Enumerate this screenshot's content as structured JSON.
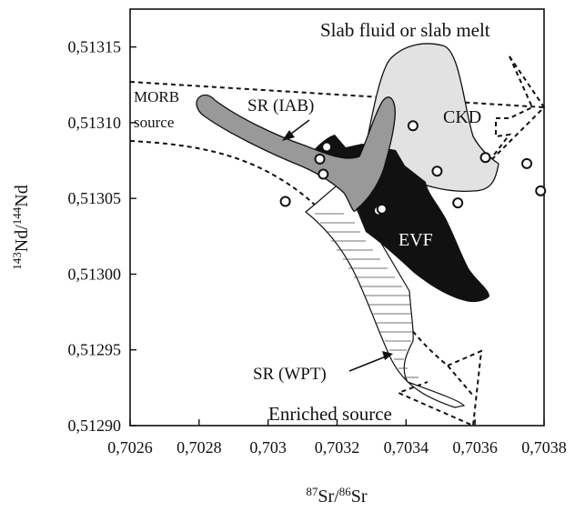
{
  "chart_data": {
    "type": "scatter",
    "title": "",
    "xlabel_sup": "87",
    "xlabel_mid": "Sr/",
    "xlabel_sup2": "86",
    "xlabel_end": "Sr",
    "ylabel_sup": "143",
    "ylabel_mid": "Nd/",
    "ylabel_sup2": "144",
    "ylabel_end": "Nd",
    "xlim": [
      0.7026,
      0.7038
    ],
    "ylim": [
      0.5129,
      0.513175
    ],
    "x_ticks": [
      0.7026,
      0.7028,
      0.703,
      0.7032,
      0.7034,
      0.7036,
      0.7038
    ],
    "x_tick_labels": [
      "0,7026",
      "0,7028",
      "0,703",
      "0,7032",
      "0,7034",
      "0,7036",
      "0,7038"
    ],
    "y_ticks": [
      0.5129,
      0.51295,
      0.513,
      0.51305,
      0.5131,
      0.51315
    ],
    "y_tick_labels": [
      "0,51290",
      "0,51295",
      "0,51300",
      "0,51305",
      "0,51310",
      "0,51315"
    ],
    "points": [
      {
        "x": 0.70305,
        "y": 0.513048
      },
      {
        "x": 0.70315,
        "y": 0.513076
      },
      {
        "x": 0.70317,
        "y": 0.513084
      },
      {
        "x": 0.70316,
        "y": 0.513066
      },
      {
        "x": 0.70332,
        "y": 0.513042
      },
      {
        "x": 0.70333,
        "y": 0.513043
      },
      {
        "x": 0.70342,
        "y": 0.513098
      },
      {
        "x": 0.70349,
        "y": 0.513068
      },
      {
        "x": 0.70355,
        "y": 0.513047
      },
      {
        "x": 0.70363,
        "y": 0.513077
      },
      {
        "x": 0.70375,
        "y": 0.513073
      },
      {
        "x": 0.70379,
        "y": 0.513055
      }
    ],
    "annotations": [
      {
        "text": "Slab fluid or slab melt"
      },
      {
        "text": "MORB"
      },
      {
        "text": "source"
      },
      {
        "text": "SR (IAB)"
      },
      {
        "text": "CKD"
      },
      {
        "text": "EVF"
      },
      {
        "text": "SR (WPT)"
      },
      {
        "text": "Enriched source"
      }
    ],
    "colors": {
      "evf": "#111111",
      "sr_iab": "#999999",
      "ckd": "#e2e2e2",
      "axis": "#111111"
    }
  }
}
